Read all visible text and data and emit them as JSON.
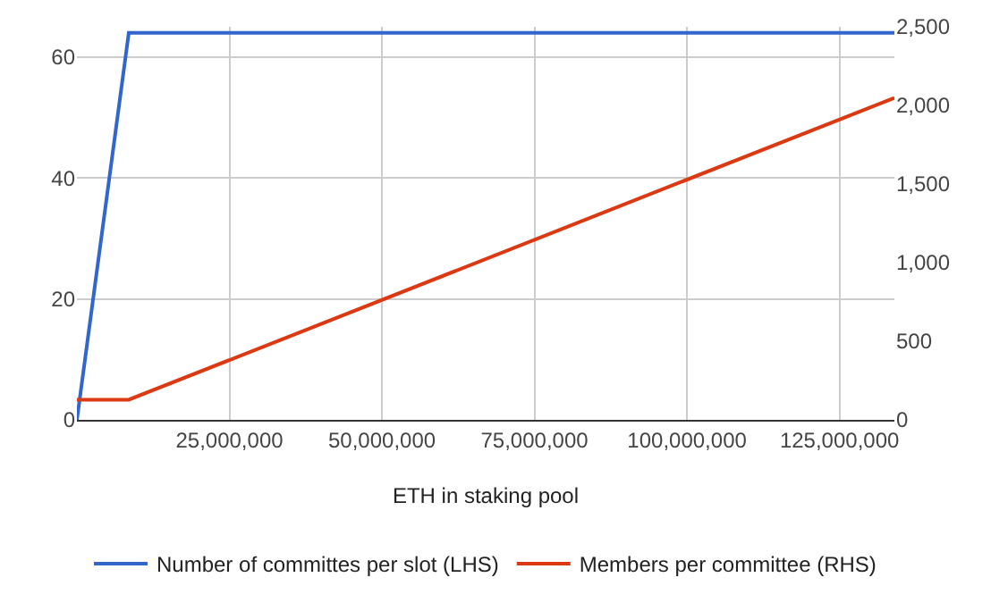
{
  "chart_data": {
    "type": "line",
    "xlabel": "ETH in staking pool",
    "xlim": [
      0,
      134000000
    ],
    "xticks": [
      {
        "value": 25000000,
        "label": "25,000,000"
      },
      {
        "value": 50000000,
        "label": "50,000,000"
      },
      {
        "value": 75000000,
        "label": "75,000,000"
      },
      {
        "value": 100000000,
        "label": "100,000,000"
      },
      {
        "value": 125000000,
        "label": "125,000,000"
      }
    ],
    "ylim": [
      0,
      65
    ],
    "yticks": [
      0,
      20,
      40,
      60
    ],
    "y2lim": [
      0,
      2500
    ],
    "y2ticks": [
      0,
      500,
      {
        "value": 1000,
        "label": "1,000"
      },
      {
        "value": 1500,
        "label": "1,500"
      },
      {
        "value": 2000,
        "label": "2,000"
      },
      {
        "value": 2500,
        "label": "2,500"
      }
    ],
    "series": [
      {
        "name": "Number of committes per slot (LHS)",
        "color": "#3366cc",
        "x": [
          0,
          8500000,
          134000000
        ],
        "values": [
          0,
          64,
          64
        ]
      },
      {
        "name": "Members per committee (RHS)",
        "color": "#dc3912",
        "axis": "y2",
        "x": [
          0,
          8500000,
          134000000
        ],
        "values": [
          128,
          128,
          2048
        ]
      }
    ],
    "grid": true,
    "legend": "bottom",
    "marker": "none",
    "line_style": "solid"
  }
}
